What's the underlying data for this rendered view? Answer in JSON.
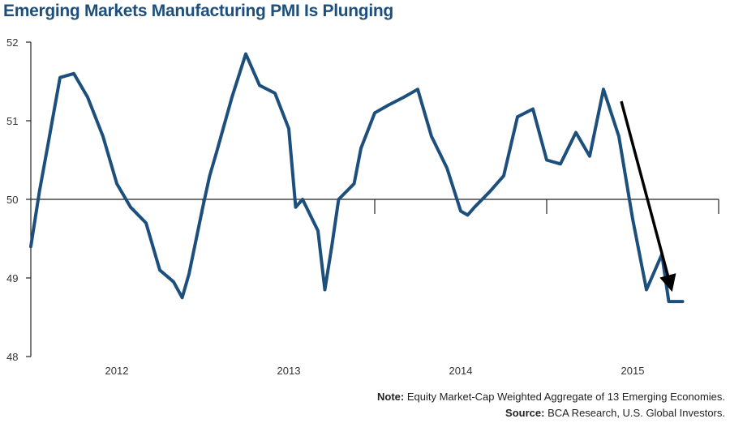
{
  "title": "Emerging Markets Manufacturing PMI Is Plunging",
  "note": {
    "label": "Note:",
    "text": "Equity Market-Cap Weighted Aggregate of 13 Emerging Economies."
  },
  "source": {
    "label": "Source:",
    "text": "BCA Research, U.S. Global Investors."
  },
  "colors": {
    "line": "#1d4f7c",
    "arrow": "#000000",
    "axis": "#222222"
  },
  "chart_data": {
    "type": "line",
    "title": "Emerging Markets Manufacturing PMI Is Plunging",
    "xlabel": "",
    "ylabel": "",
    "ylim": [
      48,
      52
    ],
    "yticks": [
      48,
      49,
      50,
      51,
      52
    ],
    "xlim": [
      2011.5,
      2015.5
    ],
    "xtick_labels": [
      "2012",
      "2013",
      "2014",
      "2015"
    ],
    "grid": false,
    "series": [
      {
        "x": [
          2011.5,
          2011.55,
          2011.6,
          2011.67,
          2011.75,
          2011.83,
          2011.92,
          2012.0,
          2012.08,
          2012.17,
          2012.25,
          2012.33,
          2012.38,
          2012.42,
          2012.5,
          2012.54,
          2012.58,
          2012.67,
          2012.75,
          2012.83,
          2012.92,
          2013.0,
          2013.04,
          2013.08,
          2013.17,
          2013.21,
          2013.25,
          2013.29,
          2013.38,
          2013.42,
          2013.5,
          2013.58,
          2013.67,
          2013.75,
          2013.83,
          2013.92,
          2014.0,
          2014.04,
          2014.08,
          2014.17,
          2014.25,
          2014.33,
          2014.42,
          2014.5,
          2014.58,
          2014.67,
          2014.75,
          2014.83,
          2014.92,
          2015.0,
          2015.08,
          2015.17,
          2015.21,
          2015.25,
          2015.29
        ],
        "values": [
          49.4,
          50.1,
          50.7,
          51.55,
          51.6,
          51.3,
          50.8,
          50.2,
          49.9,
          49.7,
          49.1,
          48.95,
          48.75,
          49.05,
          49.9,
          50.3,
          50.6,
          51.3,
          51.85,
          51.45,
          51.35,
          50.9,
          49.9,
          50.0,
          49.6,
          48.85,
          49.4,
          50.0,
          50.2,
          50.65,
          51.1,
          51.2,
          51.3,
          51.4,
          50.8,
          50.4,
          49.85,
          49.8,
          49.9,
          50.1,
          50.3,
          51.05,
          51.15,
          50.5,
          50.45,
          50.85,
          50.55,
          51.4,
          50.8,
          49.75,
          48.85,
          49.3,
          48.7,
          48.7,
          48.7
        ]
      }
    ]
  }
}
